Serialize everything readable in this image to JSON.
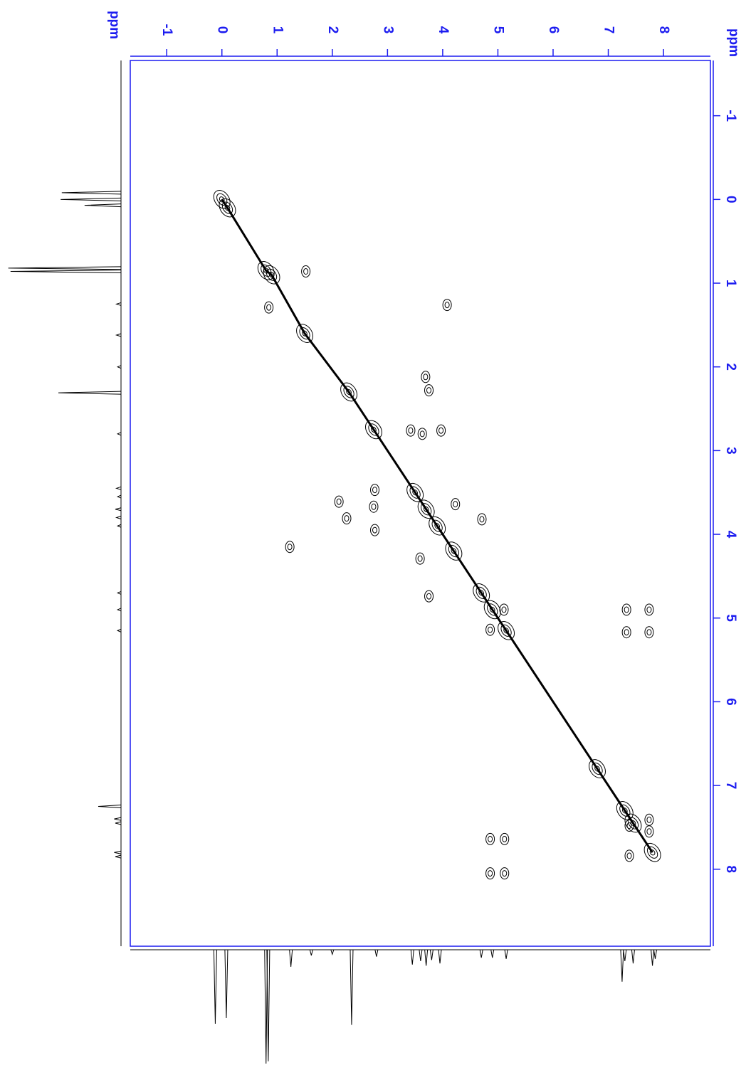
{
  "chart_data": {
    "type": "contour",
    "xlabel": "ppm",
    "ylabel": "ppm",
    "xlim": [
      -1.66,
      8.85
    ],
    "ylim": [
      -1.66,
      8.92
    ],
    "xticks": [
      -1,
      0,
      1,
      2,
      3,
      4,
      5,
      6,
      7,
      8
    ],
    "yticks": [
      -1,
      0,
      1,
      2,
      3,
      4,
      5,
      6,
      7,
      8
    ],
    "axis_color": "#1c1cf0",
    "contour_color": "#000000",
    "diagonal": {
      "x": [
        0.0,
        0.1,
        0.8,
        0.9,
        1.5,
        2.3,
        2.75,
        3.5,
        3.7,
        3.9,
        4.2,
        4.7,
        4.9,
        5.15,
        6.8,
        7.3,
        7.45,
        7.8
      ],
      "y": [
        0.0,
        0.1,
        0.85,
        0.9,
        1.6,
        2.3,
        2.75,
        3.5,
        3.7,
        3.9,
        4.2,
        4.7,
        4.9,
        5.15,
        6.8,
        7.3,
        7.45,
        7.8
      ]
    },
    "cross_peaks": {
      "x": [
        4.08,
        1.23,
        3.75,
        3.69,
        3.63,
        3.42,
        3.97,
        2.77,
        2.75,
        2.26,
        2.12,
        2.77,
        4.71,
        4.23,
        3.59,
        3.75,
        5.11,
        4.86,
        7.33,
        7.74,
        7.33,
        7.74,
        4.86,
        5.12,
        4.86,
        5.12,
        7.38,
        7.74,
        7.74,
        7.38,
        1.52,
        0.85
      ],
      "y": [
        1.26,
        4.15,
        2.28,
        2.12,
        2.8,
        2.76,
        2.76,
        3.47,
        3.67,
        3.81,
        3.61,
        3.95,
        3.82,
        3.64,
        4.29,
        4.74,
        4.9,
        5.14,
        4.9,
        4.9,
        5.17,
        5.17,
        7.64,
        7.64,
        8.05,
        8.05,
        7.48,
        7.41,
        7.55,
        7.84,
        0.86,
        1.29
      ]
    },
    "projection_left": {
      "positions": [
        -0.08,
        0.0,
        0.07,
        0.82,
        0.86,
        1.25,
        1.62,
        2.0,
        2.31,
        2.8,
        3.45,
        3.55,
        3.7,
        3.8,
        3.9,
        4.7,
        4.9,
        5.15,
        7.25,
        7.4,
        7.45,
        7.8,
        7.85
      ],
      "heights": [
        52,
        53,
        32,
        99,
        97,
        4,
        4,
        3,
        55,
        3,
        4,
        3,
        5,
        4,
        3,
        3,
        3,
        3,
        20,
        6,
        5,
        6,
        5
      ]
    },
    "projection_bottom": {
      "positions": [
        -0.12,
        0.08,
        0.8,
        0.84,
        1.25,
        1.62,
        2.0,
        2.35,
        2.8,
        3.45,
        3.6,
        3.7,
        3.8,
        3.95,
        4.7,
        4.9,
        5.15,
        7.25,
        7.3,
        7.45,
        7.8,
        7.85
      ],
      "heights": [
        65,
        60,
        100,
        98,
        15,
        5,
        4,
        66,
        6,
        13,
        10,
        14,
        9,
        12,
        7,
        7,
        8,
        28,
        10,
        12,
        14,
        8
      ]
    }
  }
}
